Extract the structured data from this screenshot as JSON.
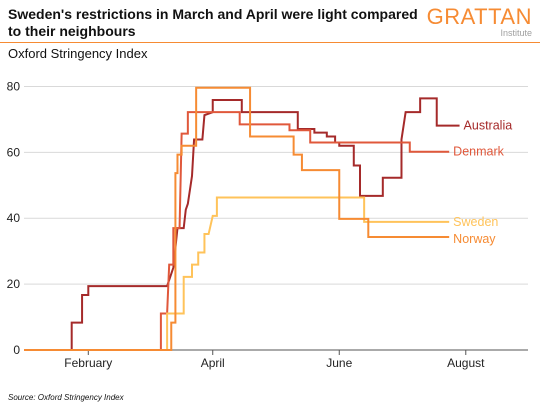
{
  "title": "Sweden's restrictions in March and April were light compared to their neighbours",
  "logo": {
    "name": "GRATTAN",
    "sub": "Institute"
  },
  "source": "Source: Oxford Stringency Index",
  "chart_data": {
    "type": "line",
    "title": "Sweden's restrictions in March and April were light compared to their neighbours",
    "ylabel": "Oxford Stringency Index",
    "xlabel": "",
    "ylim": [
      0,
      85
    ],
    "xlim": [
      "2020-01-01",
      "2020-08-31"
    ],
    "yticks": [
      0,
      20,
      40,
      60,
      80
    ],
    "xticks": [
      {
        "date": "2020-02-01",
        "label": "February"
      },
      {
        "date": "2020-04-01",
        "label": "April"
      },
      {
        "date": "2020-06-01",
        "label": "June"
      },
      {
        "date": "2020-08-01",
        "label": "August"
      }
    ],
    "grid": true,
    "series": [
      {
        "name": "Australia",
        "color": "#A52A2A",
        "points": [
          [
            "2020-01-01",
            0
          ],
          [
            "2020-01-24",
            0
          ],
          [
            "2020-01-24",
            8.3
          ],
          [
            "2020-01-29",
            8.3
          ],
          [
            "2020-01-29",
            16.7
          ],
          [
            "2020-02-01",
            16.7
          ],
          [
            "2020-02-01",
            19.4
          ],
          [
            "2020-03-10",
            19.4
          ],
          [
            "2020-03-13",
            25
          ],
          [
            "2020-03-15",
            37
          ],
          [
            "2020-03-18",
            37
          ],
          [
            "2020-03-19",
            42.6
          ],
          [
            "2020-03-20",
            44.4
          ],
          [
            "2020-03-22",
            52.8
          ],
          [
            "2020-03-23",
            63.9
          ],
          [
            "2020-03-27",
            63.9
          ],
          [
            "2020-03-28",
            71.3
          ],
          [
            "2020-04-01",
            72.2
          ],
          [
            "2020-04-01",
            75.9
          ],
          [
            "2020-04-15",
            75.9
          ],
          [
            "2020-04-15",
            72.2
          ],
          [
            "2020-05-12",
            72.2
          ],
          [
            "2020-05-12",
            67.1
          ],
          [
            "2020-05-20",
            67.1
          ],
          [
            "2020-05-20",
            66
          ],
          [
            "2020-05-26",
            66
          ],
          [
            "2020-05-26",
            64.8
          ],
          [
            "2020-05-30",
            64.8
          ],
          [
            "2020-05-30",
            63
          ],
          [
            "2020-06-01",
            63
          ],
          [
            "2020-06-01",
            62
          ],
          [
            "2020-06-08",
            62
          ],
          [
            "2020-06-08",
            56
          ],
          [
            "2020-06-11",
            56
          ],
          [
            "2020-06-11",
            46.8
          ],
          [
            "2020-06-22",
            46.8
          ],
          [
            "2020-06-22",
            52.3
          ],
          [
            "2020-07-01",
            52.3
          ],
          [
            "2020-07-01",
            63.9
          ],
          [
            "2020-07-03",
            72.2
          ],
          [
            "2020-07-10",
            72.2
          ],
          [
            "2020-07-10",
            76.4
          ],
          [
            "2020-07-18",
            76.4
          ],
          [
            "2020-07-18",
            68.1
          ],
          [
            "2020-07-29",
            68.1
          ]
        ]
      },
      {
        "name": "Denmark",
        "color": "#E0583B",
        "points": [
          [
            "2020-01-01",
            0
          ],
          [
            "2020-03-07",
            0
          ],
          [
            "2020-03-07",
            11.1
          ],
          [
            "2020-03-10",
            11.1
          ],
          [
            "2020-03-11",
            25.9
          ],
          [
            "2020-03-13",
            25.9
          ],
          [
            "2020-03-13",
            37
          ],
          [
            "2020-03-16",
            37
          ],
          [
            "2020-03-17",
            65.7
          ],
          [
            "2020-03-20",
            65.7
          ],
          [
            "2020-03-20",
            72.2
          ],
          [
            "2020-04-14",
            72.2
          ],
          [
            "2020-04-14",
            68.5
          ],
          [
            "2020-05-08",
            68.5
          ],
          [
            "2020-05-08",
            66.7
          ],
          [
            "2020-05-18",
            66.7
          ],
          [
            "2020-05-18",
            63
          ],
          [
            "2020-07-05",
            63
          ],
          [
            "2020-07-05",
            60.2
          ],
          [
            "2020-07-24",
            60.2
          ]
        ]
      },
      {
        "name": "Sweden",
        "color": "#FFC35A",
        "points": [
          [
            "2020-01-01",
            0
          ],
          [
            "2020-03-10",
            0
          ],
          [
            "2020-03-10",
            11.1
          ],
          [
            "2020-03-18",
            11.1
          ],
          [
            "2020-03-18",
            22.2
          ],
          [
            "2020-03-22",
            22.2
          ],
          [
            "2020-03-22",
            25.9
          ],
          [
            "2020-03-25",
            25.9
          ],
          [
            "2020-03-25",
            29.6
          ],
          [
            "2020-03-28",
            29.6
          ],
          [
            "2020-03-28",
            35.2
          ],
          [
            "2020-03-30",
            35.2
          ],
          [
            "2020-04-01",
            40.7
          ],
          [
            "2020-04-03",
            40.7
          ],
          [
            "2020-04-03",
            46.3
          ],
          [
            "2020-06-13",
            46.3
          ],
          [
            "2020-06-13",
            38.9
          ],
          [
            "2020-07-24",
            38.9
          ]
        ]
      },
      {
        "name": "Norway",
        "color": "#F68B33",
        "points": [
          [
            "2020-01-01",
            0
          ],
          [
            "2020-03-12",
            0
          ],
          [
            "2020-03-12",
            8.3
          ],
          [
            "2020-03-14",
            8.3
          ],
          [
            "2020-03-14",
            53.7
          ],
          [
            "2020-03-15",
            53.7
          ],
          [
            "2020-03-15",
            59.3
          ],
          [
            "2020-03-17",
            59.3
          ],
          [
            "2020-03-17",
            62
          ],
          [
            "2020-03-24",
            62
          ],
          [
            "2020-03-24",
            79.6
          ],
          [
            "2020-04-19",
            79.6
          ],
          [
            "2020-04-19",
            64.8
          ],
          [
            "2020-05-10",
            64.8
          ],
          [
            "2020-05-10",
            59.3
          ],
          [
            "2020-05-14",
            59.3
          ],
          [
            "2020-05-14",
            54.6
          ],
          [
            "2020-06-01",
            54.6
          ],
          [
            "2020-06-01",
            39.8
          ],
          [
            "2020-06-15",
            39.8
          ],
          [
            "2020-06-15",
            34.3
          ],
          [
            "2020-07-24",
            34.3
          ]
        ]
      }
    ]
  }
}
